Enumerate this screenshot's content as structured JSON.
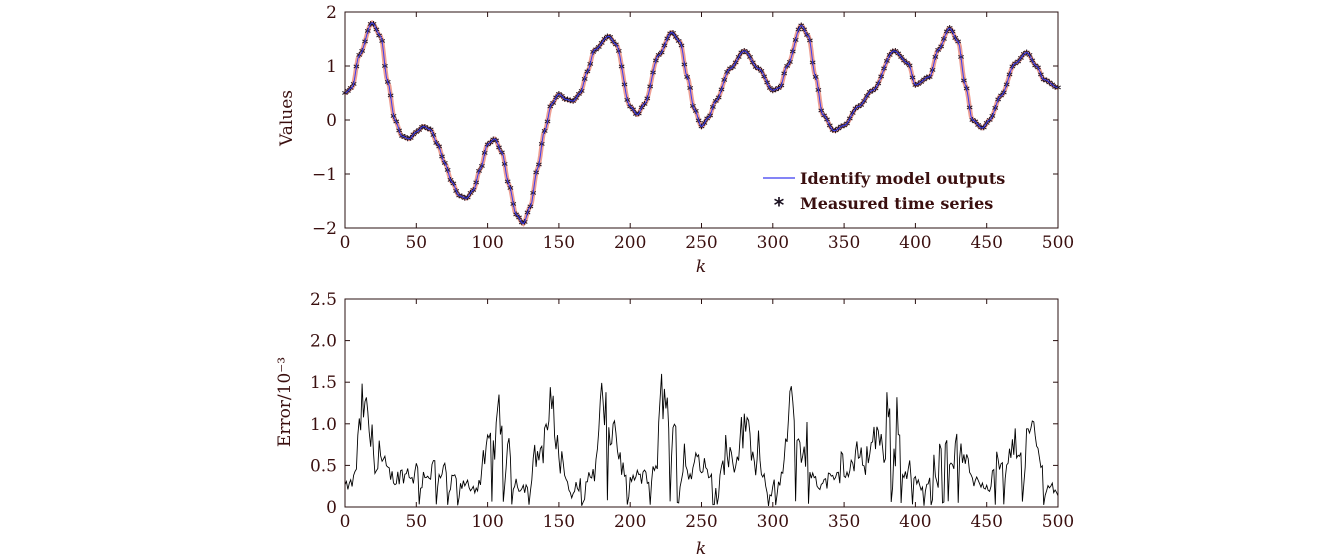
{
  "chart_data": [
    {
      "type": "line",
      "xlabel": "k",
      "ylabel": "Values",
      "xlim": [
        0,
        500
      ],
      "ylim": [
        -2,
        2
      ],
      "x_ticks": [
        "0",
        "50",
        "100",
        "150",
        "200",
        "250",
        "300",
        "350",
        "400",
        "450",
        "500"
      ],
      "y_ticks": [
        "−2",
        "−1",
        "0",
        "1",
        "2"
      ],
      "legend_position": "bottom-right",
      "grid": false,
      "series": [
        {
          "name": "Identify model outputs",
          "style": "line",
          "color": "#3b3bf0"
        },
        {
          "name": "Measured time series",
          "style": "asterisk",
          "color": "#1a1020"
        }
      ],
      "anchors": {
        "x": [
          0,
          5,
          10,
          19,
          25,
          30,
          35,
          40,
          45,
          50,
          55,
          60,
          65,
          70,
          75,
          80,
          85,
          90,
          95,
          100,
          105,
          110,
          115,
          120,
          125,
          130,
          135,
          140,
          145,
          150,
          155,
          160,
          165,
          170,
          175,
          185,
          190,
          200,
          205,
          210,
          220,
          229,
          235,
          240,
          245,
          250,
          255,
          260,
          270,
          280,
          290,
          300,
          305,
          310,
          320,
          325,
          330,
          335,
          343,
          350,
          360,
          370,
          385,
          395,
          400,
          410,
          416,
          424,
          430,
          435,
          440,
          447,
          452,
          460,
          470,
          478,
          485,
          490,
          500
        ],
        "y": [
          0.5,
          0.6,
          1.2,
          1.8,
          1.55,
          0.7,
          0.0,
          -0.3,
          -0.35,
          -0.22,
          -0.12,
          -0.18,
          -0.45,
          -0.8,
          -1.15,
          -1.4,
          -1.45,
          -1.3,
          -0.9,
          -0.45,
          -0.35,
          -0.6,
          -1.2,
          -1.75,
          -1.92,
          -1.6,
          -0.9,
          -0.2,
          0.3,
          0.48,
          0.38,
          0.35,
          0.5,
          0.9,
          1.3,
          1.55,
          1.4,
          0.25,
          0.1,
          0.3,
          1.2,
          1.62,
          1.45,
          0.8,
          0.2,
          -0.12,
          0.05,
          0.35,
          0.95,
          1.28,
          0.95,
          0.55,
          0.6,
          1.0,
          1.75,
          1.55,
          0.8,
          0.1,
          -0.2,
          -0.1,
          0.25,
          0.55,
          1.28,
          1.05,
          0.65,
          0.8,
          1.3,
          1.7,
          1.45,
          0.65,
          0.0,
          -0.15,
          0.0,
          0.45,
          1.05,
          1.25,
          1.0,
          0.75,
          0.6
        ]
      }
    },
    {
      "type": "line",
      "xlabel": "k",
      "ylabel": "Error/10⁻³",
      "xlim": [
        0,
        500
      ],
      "ylim": [
        0,
        2.5
      ],
      "x_ticks": [
        "0",
        "50",
        "100",
        "150",
        "200",
        "250",
        "300",
        "350",
        "400",
        "450",
        "500"
      ],
      "y_ticks": [
        "0",
        "0.5",
        "1.0",
        "1.5",
        "2.0",
        "2.5"
      ],
      "grid": false,
      "series": [
        {
          "name": "",
          "color": "#000000"
        }
      ],
      "envelope": {
        "x": [
          0,
          5,
          10,
          12,
          15,
          20,
          30,
          40,
          50,
          60,
          70,
          80,
          90,
          100,
          105,
          110,
          118,
          125,
          135,
          143,
          150,
          158,
          165,
          175,
          180,
          188,
          195,
          205,
          215,
          223,
          230,
          240,
          255,
          265,
          275,
          280,
          290,
          298,
          305,
          313,
          320,
          330,
          340,
          350,
          360,
          370,
          385,
          395,
          405,
          416,
          422,
          430,
          440,
          450,
          460,
          470,
          478,
          485,
          490,
          495,
          500
        ],
        "y": [
          0.3,
          0.4,
          1.3,
          1.8,
          1.4,
          0.8,
          0.5,
          0.6,
          0.65,
          0.7,
          0.55,
          0.4,
          0.35,
          0.9,
          1.5,
          1.3,
          0.6,
          0.35,
          0.9,
          1.7,
          1.0,
          0.2,
          0.3,
          0.7,
          1.8,
          1.4,
          0.6,
          0.5,
          0.55,
          1.9,
          1.2,
          0.6,
          0.5,
          0.7,
          1.2,
          1.4,
          0.8,
          0.25,
          0.6,
          1.6,
          1.1,
          0.5,
          0.35,
          0.6,
          0.85,
          1.2,
          1.2,
          0.7,
          0.3,
          0.6,
          1.4,
          1.0,
          0.5,
          0.5,
          0.6,
          1.1,
          1.4,
          1.0,
          0.5,
          0.35,
          0.25
        ]
      }
    }
  ],
  "legend": {
    "line_label": "Identify model outputs",
    "marker_label": "Measured time series"
  }
}
